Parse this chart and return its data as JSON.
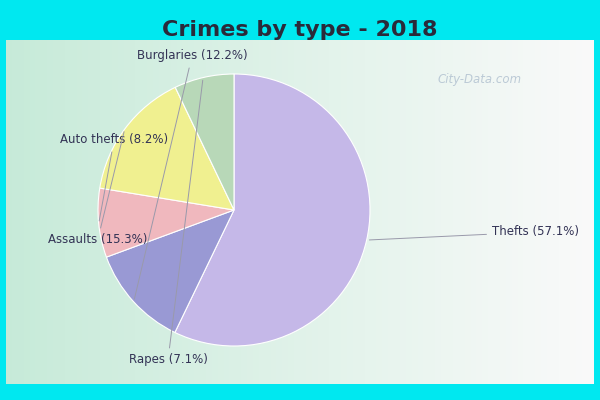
{
  "title": "Crimes by type - 2018",
  "labels": [
    "Thefts",
    "Burglaries",
    "Auto thefts",
    "Assaults",
    "Rapes"
  ],
  "values": [
    57.1,
    12.2,
    8.2,
    15.3,
    7.1
  ],
  "colors": [
    "#c5b8e8",
    "#9999d4",
    "#f0b8be",
    "#f0f090",
    "#b8d8b8"
  ],
  "label_texts": [
    "Thefts (57.1%)",
    "Burglaries (12.2%)",
    "Auto thefts (8.2%)",
    "Assaults (15.3%)",
    "Rapes (7.1%)"
  ],
  "outer_bg": "#00e8f0",
  "inner_bg_tl": "#c8e8d8",
  "inner_bg_br": "#e8f0f8",
  "title_fontsize": 16,
  "title_color": "#2a2a3a",
  "watermark": "City-Data.com",
  "startangle": 90
}
